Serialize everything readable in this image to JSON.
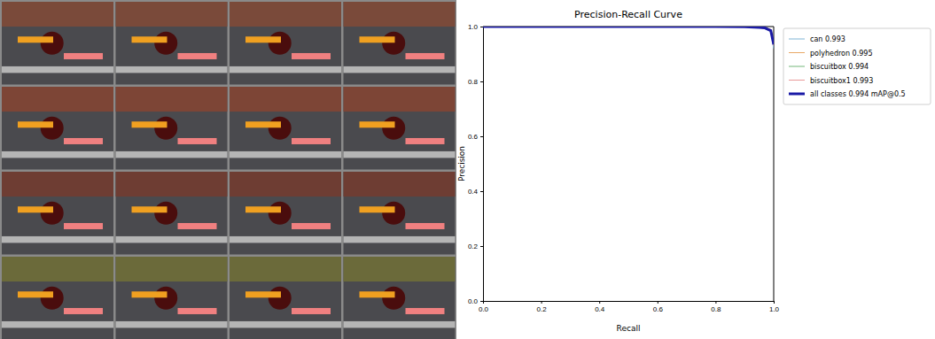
{
  "chart_data": {
    "type": "line",
    "title": "Precision-Recall Curve",
    "x_label": "Recall",
    "y_label": "Precision",
    "x": [
      0,
      0.5,
      0.8,
      0.9,
      0.95,
      0.97,
      0.98,
      0.99,
      1.0
    ],
    "series": [
      {
        "name": "can 0.993",
        "color": "#7fb3d5",
        "values": [
          1,
          1,
          1,
          0.999,
          0.996,
          0.993,
          0.988,
          0.982,
          0.92
        ]
      },
      {
        "name": "polyhedron 0.995",
        "color": "#e8a866",
        "values": [
          1,
          1,
          1,
          1,
          0.998,
          0.996,
          0.993,
          0.99,
          0.95
        ]
      },
      {
        "name": "biscuitbox 0.994",
        "color": "#74b87a",
        "values": [
          1,
          1,
          1,
          0.999,
          0.997,
          0.995,
          0.991,
          0.986,
          0.94
        ]
      },
      {
        "name": "biscuitbox1 0.993",
        "color": "#e89a9a",
        "values": [
          1,
          1,
          1,
          0.999,
          0.996,
          0.993,
          0.989,
          0.983,
          0.93
        ]
      },
      {
        "name": "all classes 0.994 mAP@0.5",
        "color": "#1a1aa6",
        "line_style": "thick",
        "values": [
          1,
          1,
          1,
          0.999,
          0.997,
          0.995,
          0.99,
          0.985,
          0.935
        ]
      }
    ],
    "xlim": [
      0,
      1
    ],
    "ylim": [
      0,
      1
    ],
    "xticks": [
      {
        "value": 0,
        "label": "0.0"
      },
      {
        "value": 0.2,
        "label": "0.2"
      },
      {
        "value": 0.4,
        "label": "0.4"
      },
      {
        "value": 0.6,
        "label": "0.6"
      },
      {
        "value": 0.8,
        "label": "0.8"
      },
      {
        "value": 1,
        "label": "1.0"
      }
    ],
    "yticks": [
      {
        "value": 0,
        "label": "0.0"
      },
      {
        "value": 0.2,
        "label": "0.2"
      },
      {
        "value": 0.4,
        "label": "0.4"
      },
      {
        "value": 0.6,
        "label": "0.6"
      },
      {
        "value": 0.8,
        "label": "0.8"
      },
      {
        "value": 1,
        "label": "1.0"
      }
    ],
    "legend": "outside-right",
    "grid": false
  }
}
